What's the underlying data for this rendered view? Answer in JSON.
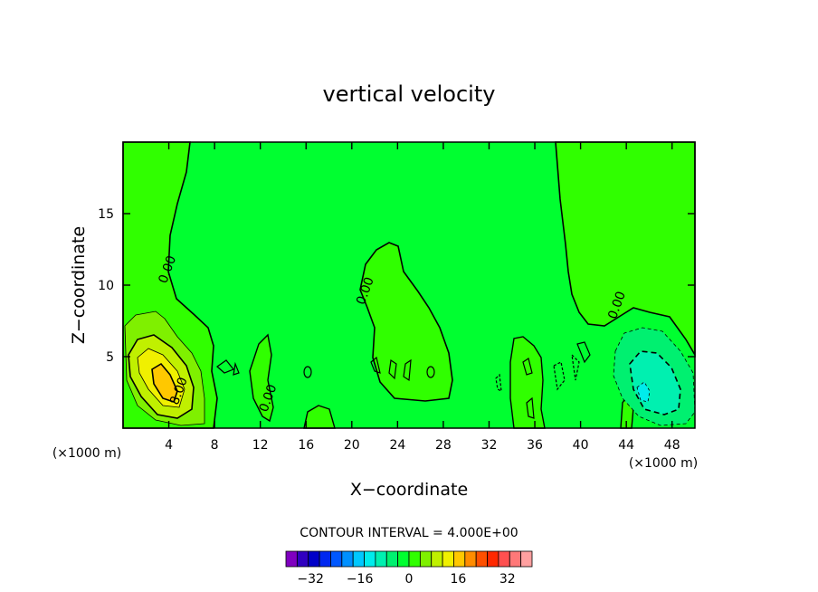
{
  "chart_data": {
    "type": "contour",
    "title": "vertical velocity",
    "xlabel": "X−coordinate",
    "ylabel": "Z−coordinate",
    "x_unit_left": "(×1000 m)",
    "x_unit_right": "(×1000 m)",
    "xlim": [
      0,
      50
    ],
    "ylim": [
      0,
      20
    ],
    "x_ticks": [
      4,
      8,
      12,
      16,
      20,
      24,
      28,
      32,
      36,
      40,
      44,
      48
    ],
    "x_tick_labels": [
      "4",
      "8",
      "12",
      "16",
      "20",
      "24",
      "28",
      "32",
      "36",
      "40",
      "44",
      "48"
    ],
    "y_ticks": [
      5,
      10,
      15
    ],
    "y_tick_labels": [
      "5",
      "10",
      "15"
    ],
    "contour_interval_label": "CONTOUR INTERVAL =  4.000E+00",
    "contour_interval": 4.0,
    "contour_labels": [
      {
        "text": "0.00",
        "x": 4.2,
        "z": 11.0
      },
      {
        "text": "0.00",
        "x": 21.5,
        "z": 9.5
      },
      {
        "text": "0.00",
        "x": 13.0,
        "z": 2.0
      },
      {
        "text": "0.00",
        "x": 43.5,
        "z": 8.5
      },
      {
        "text": "8.00",
        "x": 5.2,
        "z": 2.5
      }
    ],
    "features": [
      {
        "kind": "updraft",
        "x": 3.8,
        "z": 3.2,
        "peak": 10
      },
      {
        "kind": "downdraft",
        "x": 45.2,
        "z": 2.6,
        "peak": -9
      }
    ],
    "colorbar": {
      "tick_labels": [
        "−32",
        "−16",
        "0",
        "16",
        "32"
      ],
      "tick_values": [
        -32,
        -16,
        0,
        16,
        32
      ],
      "range": [
        -40,
        40
      ],
      "colors": [
        "#8000c0",
        "#3000c0",
        "#0000c8",
        "#0028f0",
        "#0058ff",
        "#0090ff",
        "#00c8ff",
        "#00ecec",
        "#00f0b0",
        "#00f070",
        "#00ff30",
        "#30ff00",
        "#7ff000",
        "#c0f000",
        "#f0f000",
        "#ffc800",
        "#ff8c00",
        "#ff5000",
        "#ff2800",
        "#ff5050",
        "#ff7878",
        "#ffa0a0"
      ]
    }
  }
}
